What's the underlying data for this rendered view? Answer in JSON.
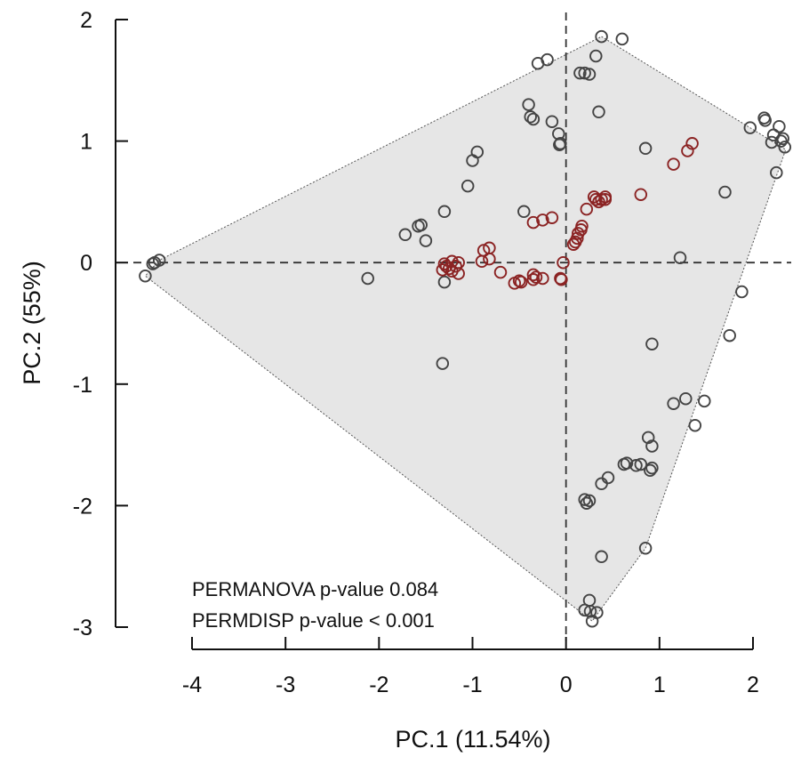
{
  "chart_data": {
    "type": "scatter",
    "title": "",
    "xlabel": "PC.1 (11.54%)",
    "ylabel": "PC.2 (55%)",
    "xlim": [
      -4,
      2.4
    ],
    "ylim": [
      -3,
      2
    ],
    "xticks": [
      -4,
      -3,
      -2,
      -1,
      0,
      1,
      2
    ],
    "yticks": [
      -3,
      -2,
      -1,
      0,
      1,
      2
    ],
    "reference_lines": {
      "x": 0,
      "y": 0,
      "style": "dashed"
    },
    "hull": {
      "fill": "#e6e6e6",
      "stroke": "#555555",
      "points": [
        [
          0.38,
          1.86
        ],
        [
          2.35,
          0.93
        ],
        [
          0.85,
          -2.35
        ],
        [
          0.28,
          -2.95
        ],
        [
          -4.5,
          -0.11
        ],
        [
          -4.35,
          0.02
        ]
      ]
    },
    "annotations": [
      "PERMANOVA p-value 0.084",
      "PERMDISP p-value < 0.001"
    ],
    "series": [
      {
        "color": "#444444",
        "points": [
          [
            0.38,
            1.86
          ],
          [
            0.6,
            1.84
          ],
          [
            0.32,
            1.7
          ],
          [
            -0.3,
            1.64
          ],
          [
            -0.2,
            1.67
          ],
          [
            0.15,
            1.56
          ],
          [
            0.2,
            1.56
          ],
          [
            0.25,
            1.55
          ],
          [
            0.35,
            1.24
          ],
          [
            -0.4,
            1.3
          ],
          [
            -0.38,
            1.2
          ],
          [
            -0.35,
            1.18
          ],
          [
            -0.15,
            1.16
          ],
          [
            -0.08,
            1.06
          ],
          [
            -0.06,
            0.98
          ],
          [
            -0.07,
            0.97
          ],
          [
            -0.95,
            0.91
          ],
          [
            -1.0,
            0.84
          ],
          [
            -1.05,
            0.63
          ],
          [
            -1.3,
            0.42
          ],
          [
            -0.45,
            0.42
          ],
          [
            -1.55,
            0.31
          ],
          [
            -1.58,
            0.3
          ],
          [
            -1.72,
            0.23
          ],
          [
            -1.5,
            0.18
          ],
          [
            -4.35,
            0.02
          ],
          [
            -4.4,
            0.0
          ],
          [
            -4.42,
            -0.01
          ],
          [
            -4.5,
            -0.11
          ],
          [
            -2.12,
            -0.13
          ],
          [
            -1.3,
            -0.16
          ],
          [
            -1.32,
            -0.83
          ],
          [
            2.12,
            1.19
          ],
          [
            2.13,
            1.17
          ],
          [
            1.97,
            1.11
          ],
          [
            2.28,
            1.12
          ],
          [
            2.22,
            1.05
          ],
          [
            2.32,
            1.02
          ],
          [
            2.3,
            1.0
          ],
          [
            2.34,
            0.95
          ],
          [
            2.2,
            0.99
          ],
          [
            2.25,
            0.74
          ],
          [
            0.85,
            0.94
          ],
          [
            1.7,
            0.58
          ],
          [
            1.22,
            0.04
          ],
          [
            1.88,
            -0.24
          ],
          [
            1.75,
            -0.6
          ],
          [
            0.92,
            -0.67
          ],
          [
            1.48,
            -1.14
          ],
          [
            1.28,
            -1.12
          ],
          [
            1.15,
            -1.16
          ],
          [
            1.38,
            -1.34
          ],
          [
            0.88,
            -1.44
          ],
          [
            0.92,
            -1.51
          ],
          [
            0.65,
            -1.65
          ],
          [
            0.62,
            -1.66
          ],
          [
            0.75,
            -1.67
          ],
          [
            0.8,
            -1.66
          ],
          [
            0.92,
            -1.69
          ],
          [
            0.9,
            -1.71
          ],
          [
            0.45,
            -1.77
          ],
          [
            0.38,
            -1.82
          ],
          [
            0.2,
            -1.95
          ],
          [
            0.25,
            -1.96
          ],
          [
            0.22,
            -1.98
          ],
          [
            0.38,
            -2.42
          ],
          [
            0.85,
            -2.35
          ],
          [
            0.25,
            -2.78
          ],
          [
            0.2,
            -2.86
          ],
          [
            0.26,
            -2.87
          ],
          [
            0.33,
            -2.88
          ],
          [
            0.28,
            -2.95
          ]
        ]
      },
      {
        "color": "#8b2323",
        "points": [
          [
            1.35,
            0.98
          ],
          [
            1.3,
            0.92
          ],
          [
            1.15,
            0.81
          ],
          [
            0.8,
            0.56
          ],
          [
            0.32,
            0.52
          ],
          [
            0.38,
            0.52
          ],
          [
            0.42,
            0.52
          ],
          [
            0.35,
            0.5
          ],
          [
            0.42,
            0.54
          ],
          [
            0.3,
            0.54
          ],
          [
            0.22,
            0.44
          ],
          [
            -0.15,
            0.37
          ],
          [
            -0.25,
            0.35
          ],
          [
            -0.35,
            0.33
          ],
          [
            0.17,
            0.3
          ],
          [
            0.13,
            0.24
          ],
          [
            0.16,
            0.27
          ],
          [
            0.12,
            0.2
          ],
          [
            0.1,
            0.17
          ],
          [
            0.08,
            0.15
          ],
          [
            -0.82,
            0.12
          ],
          [
            -0.88,
            0.1
          ],
          [
            -0.82,
            0.03
          ],
          [
            -0.9,
            0.01
          ],
          [
            -1.22,
            0.01
          ],
          [
            -1.15,
            0.0
          ],
          [
            -1.3,
            -0.01
          ],
          [
            -1.28,
            -0.03
          ],
          [
            -1.18,
            -0.03
          ],
          [
            -1.25,
            -0.05
          ],
          [
            -1.32,
            -0.06
          ],
          [
            -1.22,
            -0.07
          ],
          [
            -1.15,
            -0.09
          ],
          [
            -0.7,
            -0.08
          ],
          [
            -0.35,
            -0.1
          ],
          [
            -0.32,
            -0.12
          ],
          [
            -0.25,
            -0.13
          ],
          [
            -0.35,
            -0.14
          ],
          [
            -0.5,
            -0.15
          ],
          [
            -0.48,
            -0.16
          ],
          [
            -0.55,
            -0.17
          ],
          [
            -0.06,
            -0.13
          ],
          [
            -0.05,
            -0.14
          ],
          [
            -0.03,
            0.0
          ]
        ]
      }
    ]
  }
}
